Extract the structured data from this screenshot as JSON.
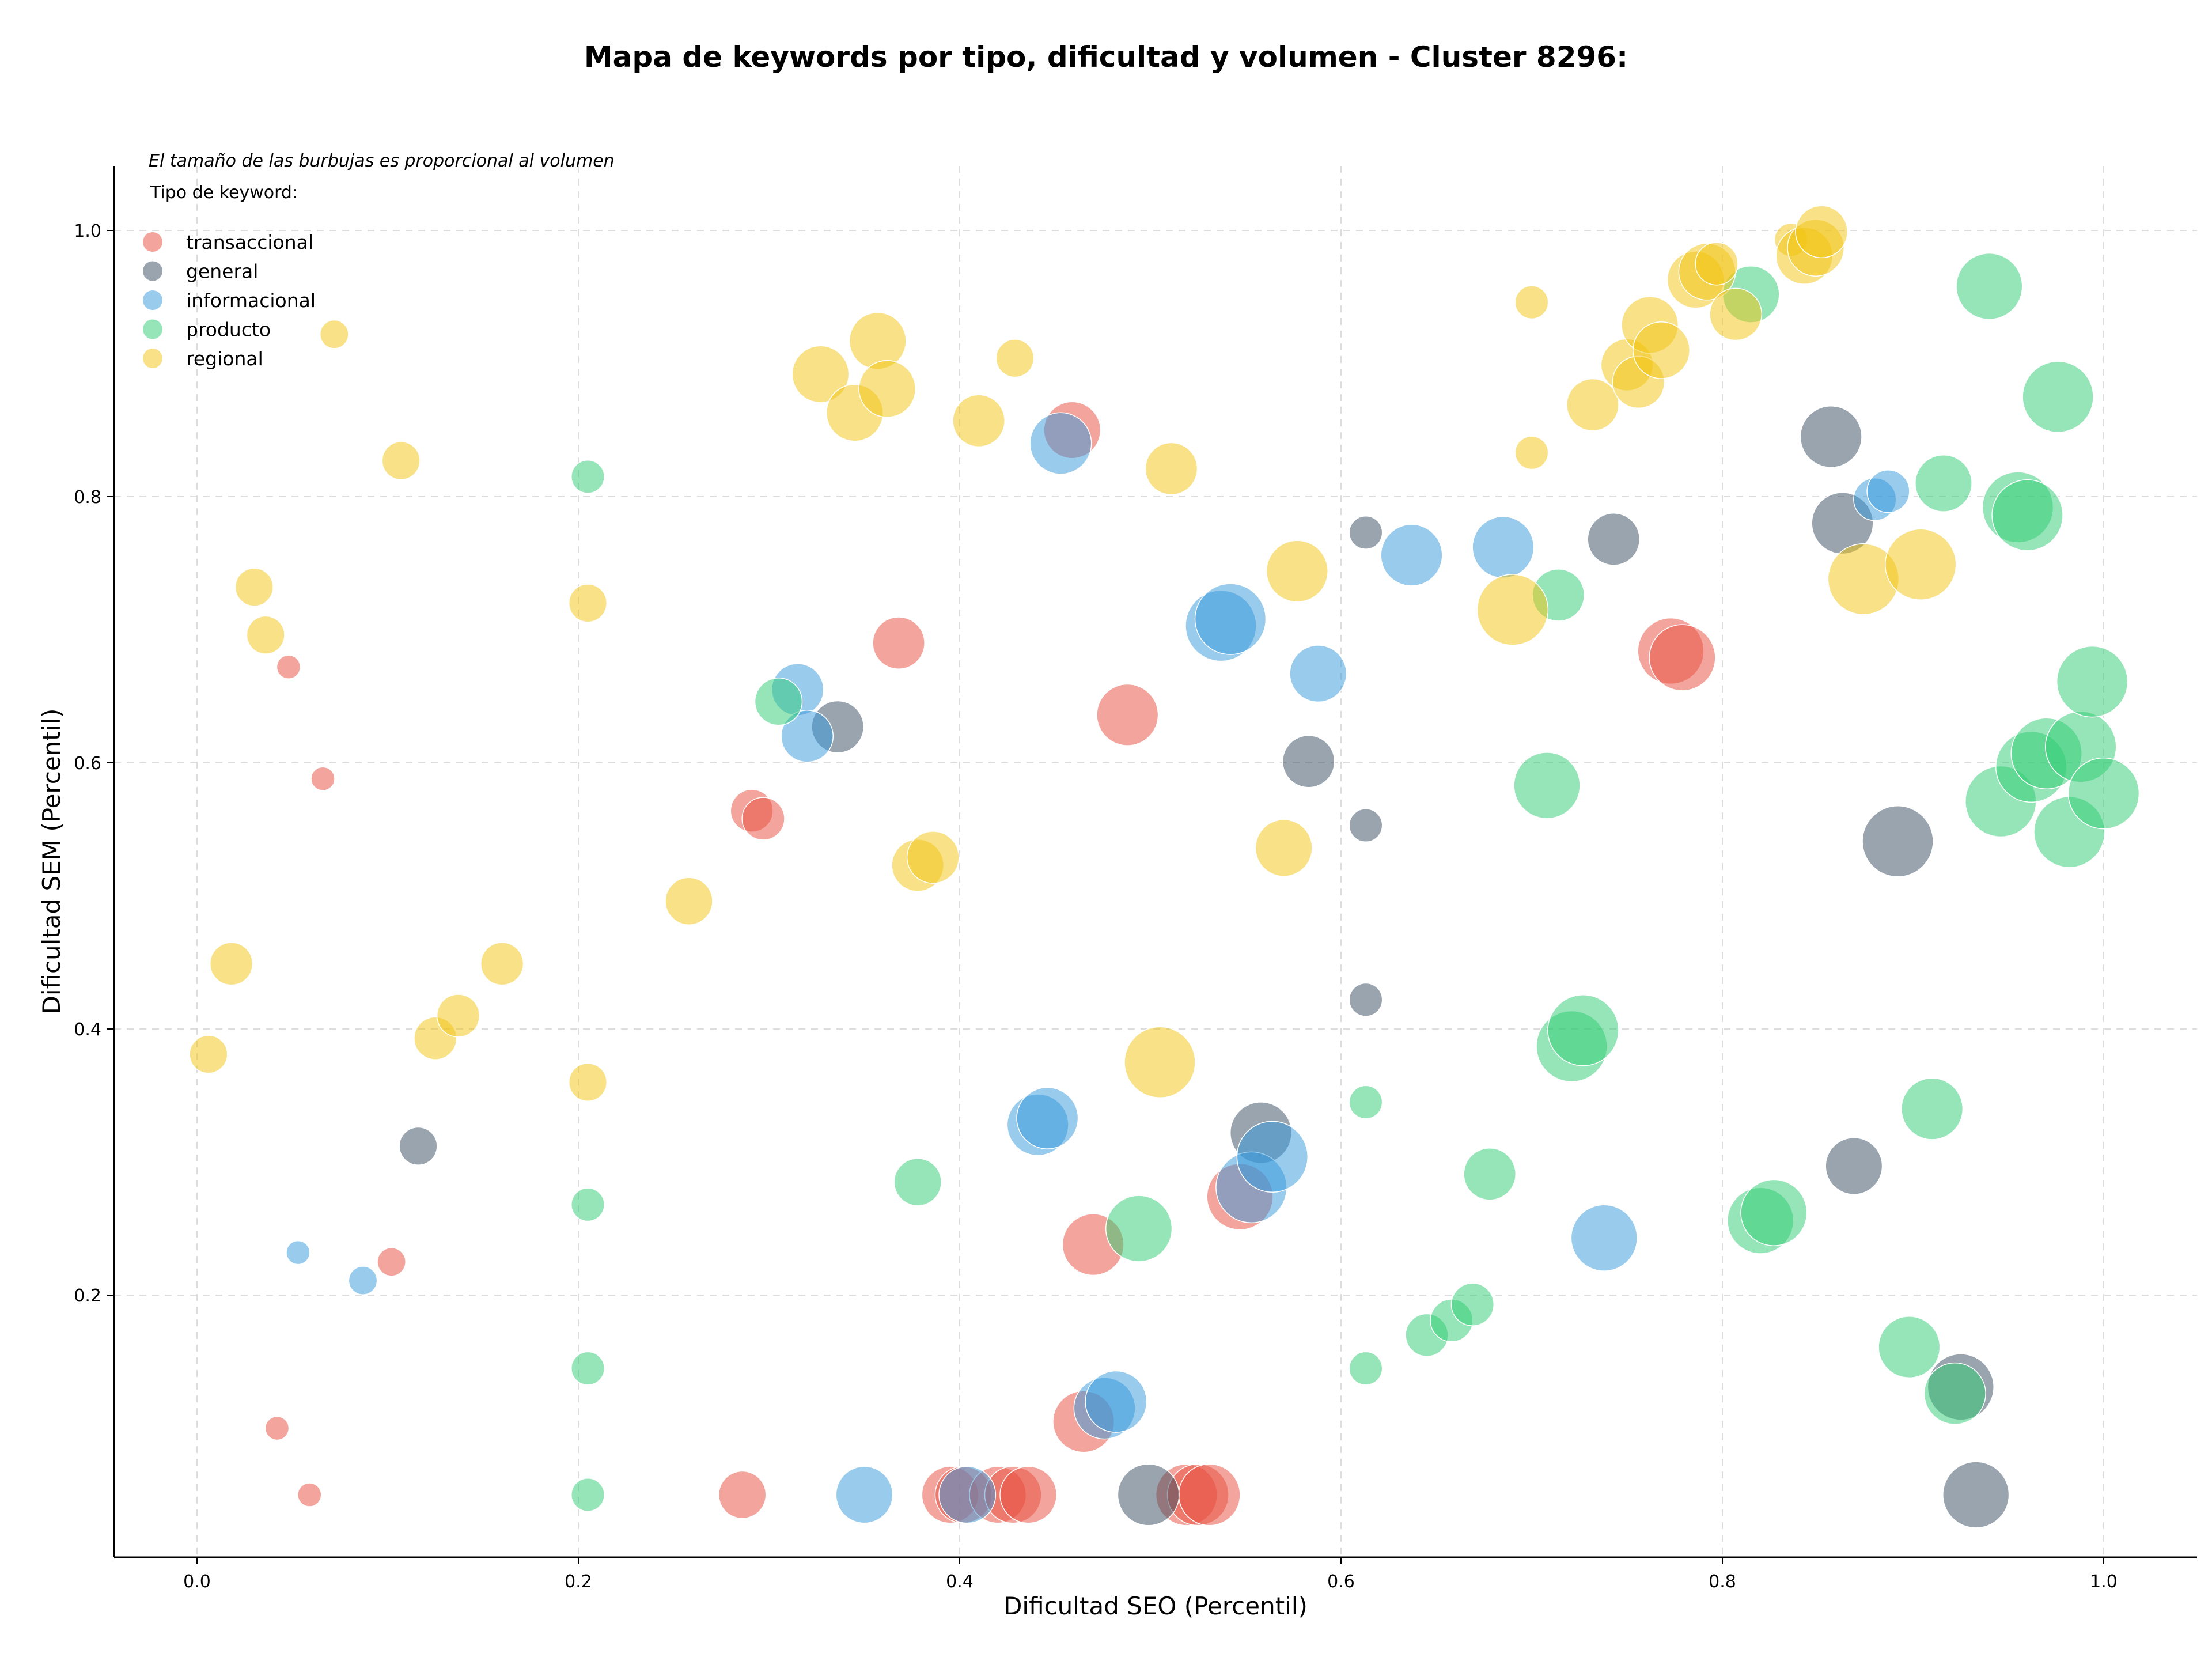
{
  "chart_data": {
    "type": "scatter",
    "title": "Mapa de keywords por tipo, dificultad y volumen - Cluster 8296:",
    "xlabel": "Dificultad SEO (Percentil)",
    "ylabel": "Dificultad SEM (Percentil)",
    "xlim": [
      -0.045,
      1.05
    ],
    "ylim": [
      -0.195,
      1.05
    ],
    "xticks": [
      0.0,
      0.2,
      0.4,
      0.6,
      0.8,
      1.0
    ],
    "yticks": [
      0.2,
      0.4,
      0.6,
      0.8,
      1.0
    ],
    "xtick_labels": [
      "0.0",
      "0.2",
      "0.4",
      "0.6",
      "0.8",
      "1.0"
    ],
    "ytick_labels": [
      "0.2",
      "0.4",
      "0.6",
      "0.8",
      "1.0"
    ],
    "grid": true,
    "legend_position": "top-left",
    "legend_note": "El tamaño de las burbujas es proporcional al volumen",
    "legend_title": "Tipo de keyword:",
    "series": [
      {
        "name": "transaccional",
        "color": "#e74c3c",
        "points": [
          [
            0.048,
            0.672,
            5
          ],
          [
            0.066,
            0.588,
            5
          ],
          [
            0.102,
            0.225,
            6
          ],
          [
            0.042,
            0.1,
            5
          ],
          [
            0.059,
            0.05,
            5
          ],
          [
            0.291,
            0.564,
            9
          ],
          [
            0.297,
            0.558,
            9
          ],
          [
            0.368,
            0.69,
            11
          ],
          [
            0.459,
            0.85,
            12
          ],
          [
            0.488,
            0.636,
            13
          ],
          [
            0.47,
            0.238,
            13
          ],
          [
            0.465,
            0.105,
            13
          ],
          [
            0.547,
            0.274,
            14
          ],
          [
            0.286,
            0.05,
            10
          ],
          [
            0.395,
            0.05,
            12
          ],
          [
            0.402,
            0.05,
            12
          ],
          [
            0.42,
            0.05,
            12
          ],
          [
            0.428,
            0.05,
            12
          ],
          [
            0.436,
            0.05,
            12
          ],
          [
            0.519,
            0.05,
            13
          ],
          [
            0.525,
            0.05,
            13
          ],
          [
            0.531,
            0.05,
            13
          ],
          [
            0.773,
            0.684,
            14
          ],
          [
            0.779,
            0.679,
            14
          ]
        ]
      },
      {
        "name": "general",
        "color": "#34495e",
        "points": [
          [
            0.116,
            0.312,
            8
          ],
          [
            0.336,
            0.627,
            11
          ],
          [
            0.583,
            0.601,
            11
          ],
          [
            0.613,
            0.773,
            7
          ],
          [
            0.613,
            0.553,
            7
          ],
          [
            0.613,
            0.422,
            7
          ],
          [
            0.558,
            0.322,
            13
          ],
          [
            0.499,
            0.05,
            13
          ],
          [
            0.743,
            0.768,
            11
          ],
          [
            0.857,
            0.845,
            13
          ],
          [
            0.863,
            0.78,
            13
          ],
          [
            0.869,
            0.297,
            12
          ],
          [
            0.892,
            0.541,
            15
          ],
          [
            0.925,
            0.131,
            14
          ],
          [
            0.933,
            0.05,
            14
          ]
        ]
      },
      {
        "name": "informacional",
        "color": "#3498db",
        "points": [
          [
            0.053,
            0.232,
            5
          ],
          [
            0.087,
            0.211,
            6
          ],
          [
            0.315,
            0.655,
            11
          ],
          [
            0.32,
            0.62,
            11
          ],
          [
            0.453,
            0.84,
            13
          ],
          [
            0.441,
            0.328,
            13
          ],
          [
            0.446,
            0.333,
            13
          ],
          [
            0.35,
            0.05,
            12
          ],
          [
            0.404,
            0.05,
            12
          ],
          [
            0.476,
            0.115,
            13
          ],
          [
            0.482,
            0.12,
            13
          ],
          [
            0.537,
            0.703,
            15
          ],
          [
            0.542,
            0.708,
            15
          ],
          [
            0.553,
            0.281,
            15
          ],
          [
            0.564,
            0.304,
            15
          ],
          [
            0.588,
            0.667,
            12
          ],
          [
            0.637,
            0.756,
            13
          ],
          [
            0.685,
            0.762,
            13
          ],
          [
            0.738,
            0.243,
            14
          ],
          [
            0.88,
            0.798,
            9
          ],
          [
            0.887,
            0.804,
            9
          ]
        ]
      },
      {
        "name": "producto",
        "color": "#2ecc71",
        "points": [
          [
            0.205,
            0.815,
            7
          ],
          [
            0.205,
            0.268,
            7
          ],
          [
            0.205,
            0.145,
            7
          ],
          [
            0.205,
            0.05,
            7
          ],
          [
            0.305,
            0.646,
            10
          ],
          [
            0.378,
            0.285,
            10
          ],
          [
            0.494,
            0.25,
            14
          ],
          [
            0.613,
            0.345,
            7
          ],
          [
            0.613,
            0.145,
            7
          ],
          [
            0.645,
            0.17,
            9
          ],
          [
            0.658,
            0.181,
            9
          ],
          [
            0.669,
            0.193,
            9
          ],
          [
            0.678,
            0.291,
            11
          ],
          [
            0.714,
            0.726,
            11
          ],
          [
            0.708,
            0.583,
            14
          ],
          [
            0.721,
            0.387,
            15
          ],
          [
            0.727,
            0.399,
            15
          ],
          [
            0.815,
            0.952,
            12
          ],
          [
            0.82,
            0.256,
            14
          ],
          [
            0.827,
            0.262,
            14
          ],
          [
            0.898,
            0.161,
            13
          ],
          [
            0.91,
            0.34,
            13
          ],
          [
            0.916,
            0.81,
            12
          ],
          [
            0.922,
            0.126,
            13
          ],
          [
            0.94,
            0.958,
            14
          ],
          [
            0.946,
            0.571,
            15
          ],
          [
            0.955,
            0.792,
            15
          ],
          [
            0.96,
            0.786,
            15
          ],
          [
            0.962,
            0.597,
            15
          ],
          [
            0.97,
            0.607,
            15
          ],
          [
            0.976,
            0.875,
            15
          ],
          [
            0.982,
            0.548,
            15
          ],
          [
            0.988,
            0.612,
            15
          ],
          [
            0.994,
            0.661,
            15
          ],
          [
            1.0,
            0.577,
            15
          ]
        ]
      },
      {
        "name": "regional",
        "color": "#f1c40f",
        "points": [
          [
            0.006,
            0.381,
            8
          ],
          [
            0.018,
            0.449,
            9
          ],
          [
            0.03,
            0.732,
            8
          ],
          [
            0.036,
            0.696,
            8
          ],
          [
            0.072,
            0.922,
            6
          ],
          [
            0.107,
            0.827,
            8
          ],
          [
            0.125,
            0.393,
            9
          ],
          [
            0.137,
            0.41,
            9
          ],
          [
            0.16,
            0.449,
            9
          ],
          [
            0.205,
            0.72,
            8
          ],
          [
            0.205,
            0.36,
            8
          ],
          [
            0.258,
            0.496,
            10
          ],
          [
            0.327,
            0.892,
            12
          ],
          [
            0.345,
            0.863,
            12
          ],
          [
            0.357,
            0.917,
            12
          ],
          [
            0.362,
            0.881,
            12
          ],
          [
            0.378,
            0.523,
            11
          ],
          [
            0.386,
            0.529,
            11
          ],
          [
            0.41,
            0.857,
            11
          ],
          [
            0.429,
            0.904,
            8
          ],
          [
            0.505,
            0.375,
            15
          ],
          [
            0.511,
            0.821,
            11
          ],
          [
            0.57,
            0.536,
            12
          ],
          [
            0.577,
            0.744,
            13
          ],
          [
            0.69,
            0.715,
            15
          ],
          [
            0.7,
            0.946,
            7
          ],
          [
            0.7,
            0.833,
            7
          ],
          [
            0.732,
            0.869,
            11
          ],
          [
            0.75,
            0.899,
            11
          ],
          [
            0.756,
            0.886,
            11
          ],
          [
            0.762,
            0.929,
            12
          ],
          [
            0.768,
            0.91,
            12
          ],
          [
            0.786,
            0.963,
            12
          ],
          [
            0.792,
            0.969,
            12
          ],
          [
            0.797,
            0.975,
            9
          ],
          [
            0.807,
            0.937,
            11
          ],
          [
            0.836,
            0.993,
            7
          ],
          [
            0.843,
            0.981,
            12
          ],
          [
            0.849,
            0.987,
            12
          ],
          [
            0.852,
            0.999,
            11
          ],
          [
            0.874,
            0.738,
            15
          ],
          [
            0.904,
            0.749,
            15
          ]
        ]
      }
    ]
  }
}
